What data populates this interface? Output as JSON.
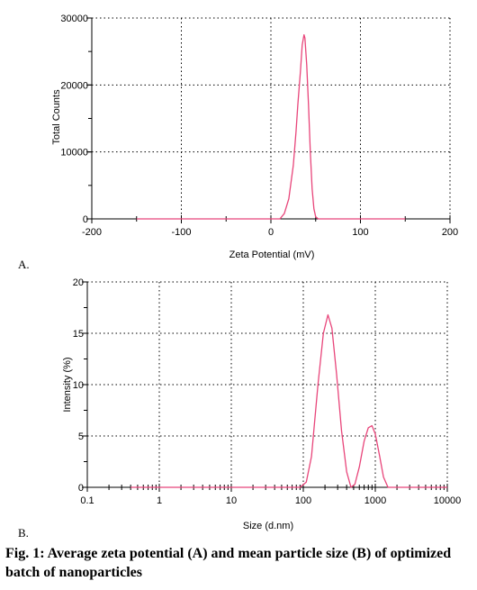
{
  "caption": "Fig. 1: Average zeta potential (A) and mean particle size (B) of optimized batch of nanoparticles",
  "colors": {
    "series": "#e8457a",
    "axis": "#000000",
    "grid": "#000000"
  },
  "chart_data": [
    {
      "panel_label": "A.",
      "type": "line",
      "xlabel": "Zeta Potential (mV)",
      "ylabel": "Total Counts",
      "xlim": [
        -200,
        200
      ],
      "ylim": [
        0,
        30000
      ],
      "xticks": [
        -200,
        -100,
        0,
        100,
        200
      ],
      "yticks": [
        0,
        10000,
        20000,
        30000
      ],
      "x_log": false,
      "grid": true,
      "series": [
        {
          "x": [
            -150,
            -100,
            -50,
            0,
            10,
            15,
            20,
            25,
            28,
            30,
            33,
            35,
            37,
            38,
            40,
            42,
            44,
            46,
            48,
            50,
            53,
            56,
            60,
            100,
            150
          ],
          "y": [
            0,
            0,
            0,
            0,
            0,
            800,
            3000,
            8000,
            13000,
            17000,
            22000,
            26000,
            27500,
            27000,
            23000,
            17000,
            10000,
            4500,
            1500,
            300,
            0,
            0,
            0,
            0,
            0
          ]
        }
      ]
    },
    {
      "panel_label": "B.",
      "type": "line",
      "xlabel": "Size (d.nm)",
      "ylabel": "Intensity (%)",
      "xlim": [
        0.1,
        10000
      ],
      "ylim": [
        0,
        20
      ],
      "xticks": [
        0.1,
        1,
        10,
        100,
        1000,
        10000
      ],
      "xtick_labels": [
        "0.1",
        "1",
        "10",
        "100",
        "1000",
        "10000"
      ],
      "yticks": [
        0,
        5,
        10,
        15,
        20
      ],
      "x_log": true,
      "grid": true,
      "series": [
        {
          "x": [
            0.4,
            1,
            10,
            50,
            90,
            110,
            130,
            160,
            190,
            220,
            250,
            290,
            340,
            400,
            460,
            520,
            600,
            700,
            800,
            900,
            1000,
            1150,
            1300,
            1500,
            2000,
            5000,
            10000
          ],
          "y": [
            0,
            0,
            0,
            0,
            0,
            0.5,
            3,
            10,
            15,
            16.8,
            15.5,
            11,
            5.5,
            1.5,
            0,
            0.3,
            2,
            4.5,
            5.8,
            6,
            5.2,
            3,
            1,
            0,
            0,
            0,
            0
          ]
        }
      ]
    }
  ]
}
